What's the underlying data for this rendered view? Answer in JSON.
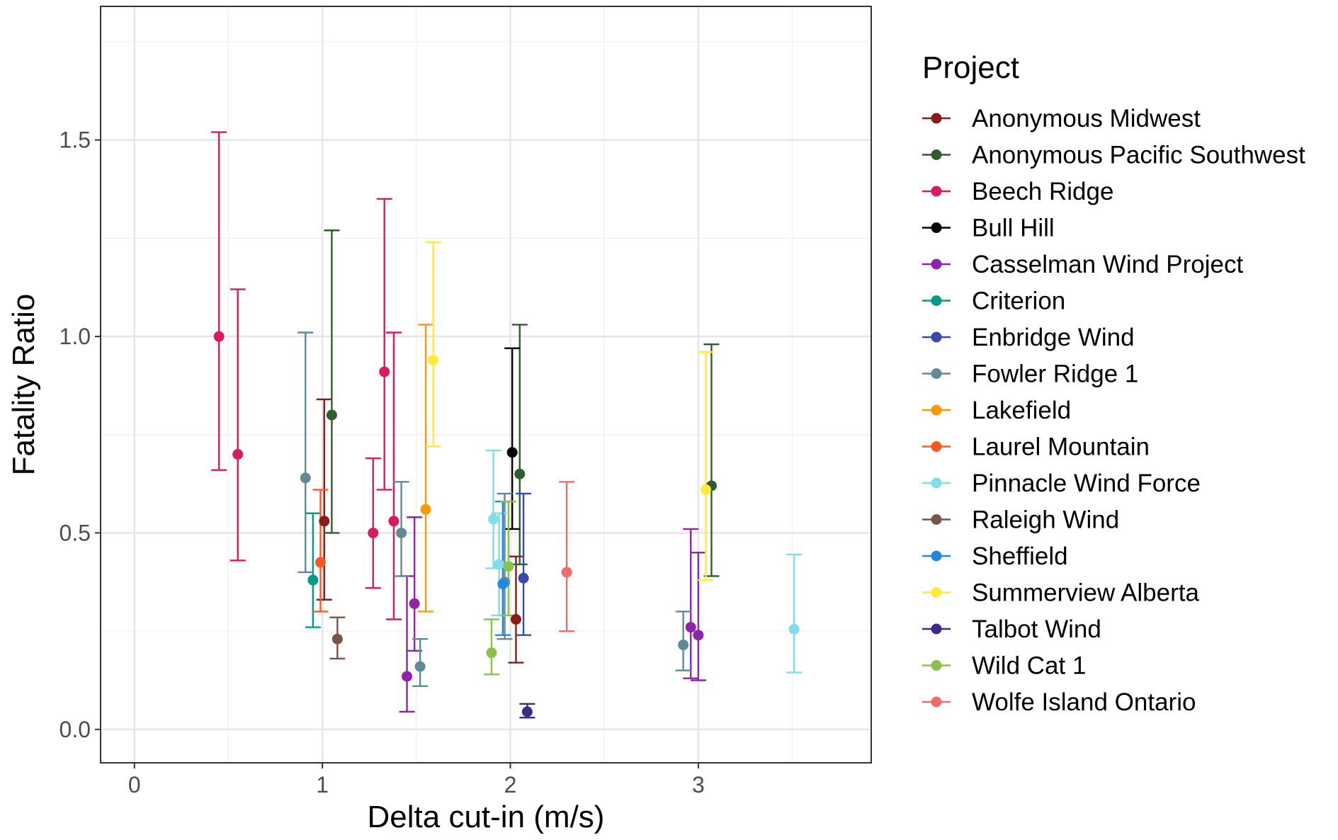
{
  "chart_data": {
    "type": "scatter",
    "subtype": "point-with-error-bars",
    "title": "",
    "xlabel": "Delta cut-in (m/s)",
    "ylabel": "Fatality Ratio",
    "xlim": [
      -0.18,
      3.92
    ],
    "ylim": [
      -0.085,
      1.84
    ],
    "x_ticks": [
      0,
      1,
      2,
      3
    ],
    "y_ticks": [
      0.0,
      0.5,
      1.0,
      1.5
    ],
    "x_tick_labels": [
      "0",
      "1",
      "2",
      "3"
    ],
    "y_tick_labels": [
      "0.0",
      "0.5",
      "1.0",
      "1.5"
    ],
    "grid": true,
    "legend": {
      "title": "Project",
      "position": "right"
    },
    "series": [
      {
        "name": "Anonymous Midwest",
        "color": "#8b1a1a",
        "points": [
          {
            "x": 1.01,
            "y": 0.53,
            "lo": 0.33,
            "hi": 0.84
          },
          {
            "x": 2.03,
            "y": 0.28,
            "lo": 0.17,
            "hi": 0.44
          }
        ]
      },
      {
        "name": "Anonymous Pacific Southwest",
        "color": "#2e5e2e",
        "points": [
          {
            "x": 1.05,
            "y": 0.8,
            "lo": 0.5,
            "hi": 1.27
          },
          {
            "x": 2.05,
            "y": 0.65,
            "lo": 0.42,
            "hi": 1.03
          },
          {
            "x": 3.07,
            "y": 0.62,
            "lo": 0.39,
            "hi": 0.98
          }
        ]
      },
      {
        "name": "Beech Ridge",
        "color": "#d81b60",
        "points": [
          {
            "x": 0.45,
            "y": 1.0,
            "lo": 0.66,
            "hi": 1.52
          },
          {
            "x": 0.55,
            "y": 0.7,
            "lo": 0.43,
            "hi": 1.12
          },
          {
            "x": 1.27,
            "y": 0.5,
            "lo": 0.36,
            "hi": 0.69
          },
          {
            "x": 1.33,
            "y": 0.91,
            "lo": 0.61,
            "hi": 1.35
          },
          {
            "x": 1.38,
            "y": 0.53,
            "lo": 0.28,
            "hi": 1.01
          }
        ]
      },
      {
        "name": "Bull Hill",
        "color": "#000000",
        "points": [
          {
            "x": 2.01,
            "y": 0.705,
            "lo": 0.51,
            "hi": 0.97
          }
        ]
      },
      {
        "name": "Casselman Wind Project",
        "color": "#8e24aa",
        "points": [
          {
            "x": 1.45,
            "y": 0.135,
            "lo": 0.045,
            "hi": 0.39
          },
          {
            "x": 1.49,
            "y": 0.32,
            "lo": 0.2,
            "hi": 0.54
          },
          {
            "x": 2.96,
            "y": 0.26,
            "lo": 0.13,
            "hi": 0.51
          },
          {
            "x": 3.0,
            "y": 0.24,
            "lo": 0.125,
            "hi": 0.45
          }
        ]
      },
      {
        "name": "Criterion",
        "color": "#00998a",
        "points": [
          {
            "x": 0.95,
            "y": 0.38,
            "lo": 0.26,
            "hi": 0.55
          }
        ]
      },
      {
        "name": "Enbridge Wind",
        "color": "#3949ab",
        "points": [
          {
            "x": 2.07,
            "y": 0.385,
            "lo": 0.24,
            "hi": 0.6
          }
        ]
      },
      {
        "name": "Fowler Ridge 1",
        "color": "#5f8a96",
        "points": [
          {
            "x": 0.91,
            "y": 0.64,
            "lo": 0.4,
            "hi": 1.01
          },
          {
            "x": 1.42,
            "y": 0.5,
            "lo": 0.39,
            "hi": 0.63
          },
          {
            "x": 1.52,
            "y": 0.16,
            "lo": 0.11,
            "hi": 0.23
          },
          {
            "x": 1.97,
            "y": 0.375,
            "lo": 0.23,
            "hi": 0.6
          },
          {
            "x": 2.92,
            "y": 0.215,
            "lo": 0.15,
            "hi": 0.3
          }
        ]
      },
      {
        "name": "Lakefield",
        "color": "#ff9800",
        "points": [
          {
            "x": 1.55,
            "y": 0.56,
            "lo": 0.3,
            "hi": 1.03
          }
        ]
      },
      {
        "name": "Laurel Mountain",
        "color": "#ff5722",
        "points": [
          {
            "x": 0.99,
            "y": 0.425,
            "lo": 0.3,
            "hi": 0.61
          }
        ]
      },
      {
        "name": "Pinnacle Wind Force",
        "color": "#80deea",
        "points": [
          {
            "x": 1.91,
            "y": 0.535,
            "lo": 0.41,
            "hi": 0.71
          },
          {
            "x": 1.94,
            "y": 0.42,
            "lo": 0.29,
            "hi": 0.55
          },
          {
            "x": 3.51,
            "y": 0.255,
            "lo": 0.145,
            "hi": 0.445
          }
        ]
      },
      {
        "name": "Raleigh Wind",
        "color": "#795548",
        "points": [
          {
            "x": 1.08,
            "y": 0.23,
            "lo": 0.18,
            "hi": 0.285
          }
        ]
      },
      {
        "name": "Sheffield",
        "color": "#1e88e5",
        "points": [
          {
            "x": 1.96,
            "y": 0.37,
            "lo": 0.24,
            "hi": 0.58
          }
        ]
      },
      {
        "name": "Summerview Alberta",
        "color": "#ffeb3b",
        "points": [
          {
            "x": 1.59,
            "y": 0.94,
            "lo": 0.72,
            "hi": 1.24
          },
          {
            "x": 3.04,
            "y": 0.61,
            "lo": 0.38,
            "hi": 0.96
          }
        ]
      },
      {
        "name": "Talbot Wind",
        "color": "#3f2a8c",
        "points": [
          {
            "x": 2.09,
            "y": 0.045,
            "lo": 0.03,
            "hi": 0.065
          }
        ]
      },
      {
        "name": "Wild Cat 1",
        "color": "#8bc34a",
        "points": [
          {
            "x": 1.9,
            "y": 0.195,
            "lo": 0.14,
            "hi": 0.28
          },
          {
            "x": 1.99,
            "y": 0.415,
            "lo": 0.29,
            "hi": 0.58
          }
        ]
      },
      {
        "name": "Wolfe Island Ontario",
        "color": "#f26b6b",
        "points": [
          {
            "x": 2.3,
            "y": 0.4,
            "lo": 0.25,
            "hi": 0.63
          }
        ]
      }
    ]
  }
}
